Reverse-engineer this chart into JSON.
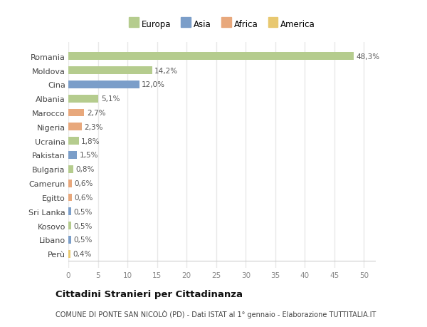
{
  "countries": [
    "Romania",
    "Moldova",
    "Cina",
    "Albania",
    "Marocco",
    "Nigeria",
    "Ucraina",
    "Pakistan",
    "Bulgaria",
    "Camerun",
    "Egitto",
    "Sri Lanka",
    "Kosovo",
    "Libano",
    "Perù"
  ],
  "values": [
    48.3,
    14.2,
    12.0,
    5.1,
    2.7,
    2.3,
    1.8,
    1.5,
    0.8,
    0.6,
    0.6,
    0.5,
    0.5,
    0.5,
    0.4
  ],
  "labels": [
    "48,3%",
    "14,2%",
    "12,0%",
    "5,1%",
    "2,7%",
    "2,3%",
    "1,8%",
    "1,5%",
    "0,8%",
    "0,6%",
    "0,6%",
    "0,5%",
    "0,5%",
    "0,5%",
    "0,4%"
  ],
  "colors": [
    "#b5cc8e",
    "#b5cc8e",
    "#7b9ec9",
    "#b5cc8e",
    "#e8a87c",
    "#e8a87c",
    "#b5cc8e",
    "#7b9ec9",
    "#b5cc8e",
    "#e8a87c",
    "#e8a87c",
    "#7b9ec9",
    "#b5cc8e",
    "#7b9ec9",
    "#e8c870"
  ],
  "legend_labels": [
    "Europa",
    "Asia",
    "Africa",
    "America"
  ],
  "legend_colors": [
    "#b5cc8e",
    "#7b9ec9",
    "#e8a87c",
    "#e8c870"
  ],
  "title": "Cittadini Stranieri per Cittadinanza",
  "subtitle": "COMUNE DI PONTE SAN NICOLÒ (PD) - Dati ISTAT al 1° gennaio - Elaborazione TUTTITALIA.IT",
  "xlim": [
    0,
    52
  ],
  "xticks": [
    0,
    5,
    10,
    15,
    20,
    25,
    30,
    35,
    40,
    45,
    50
  ],
  "plot_bg": "#ffffff",
  "fig_bg": "#ffffff",
  "grid_color": "#e8e8e8"
}
